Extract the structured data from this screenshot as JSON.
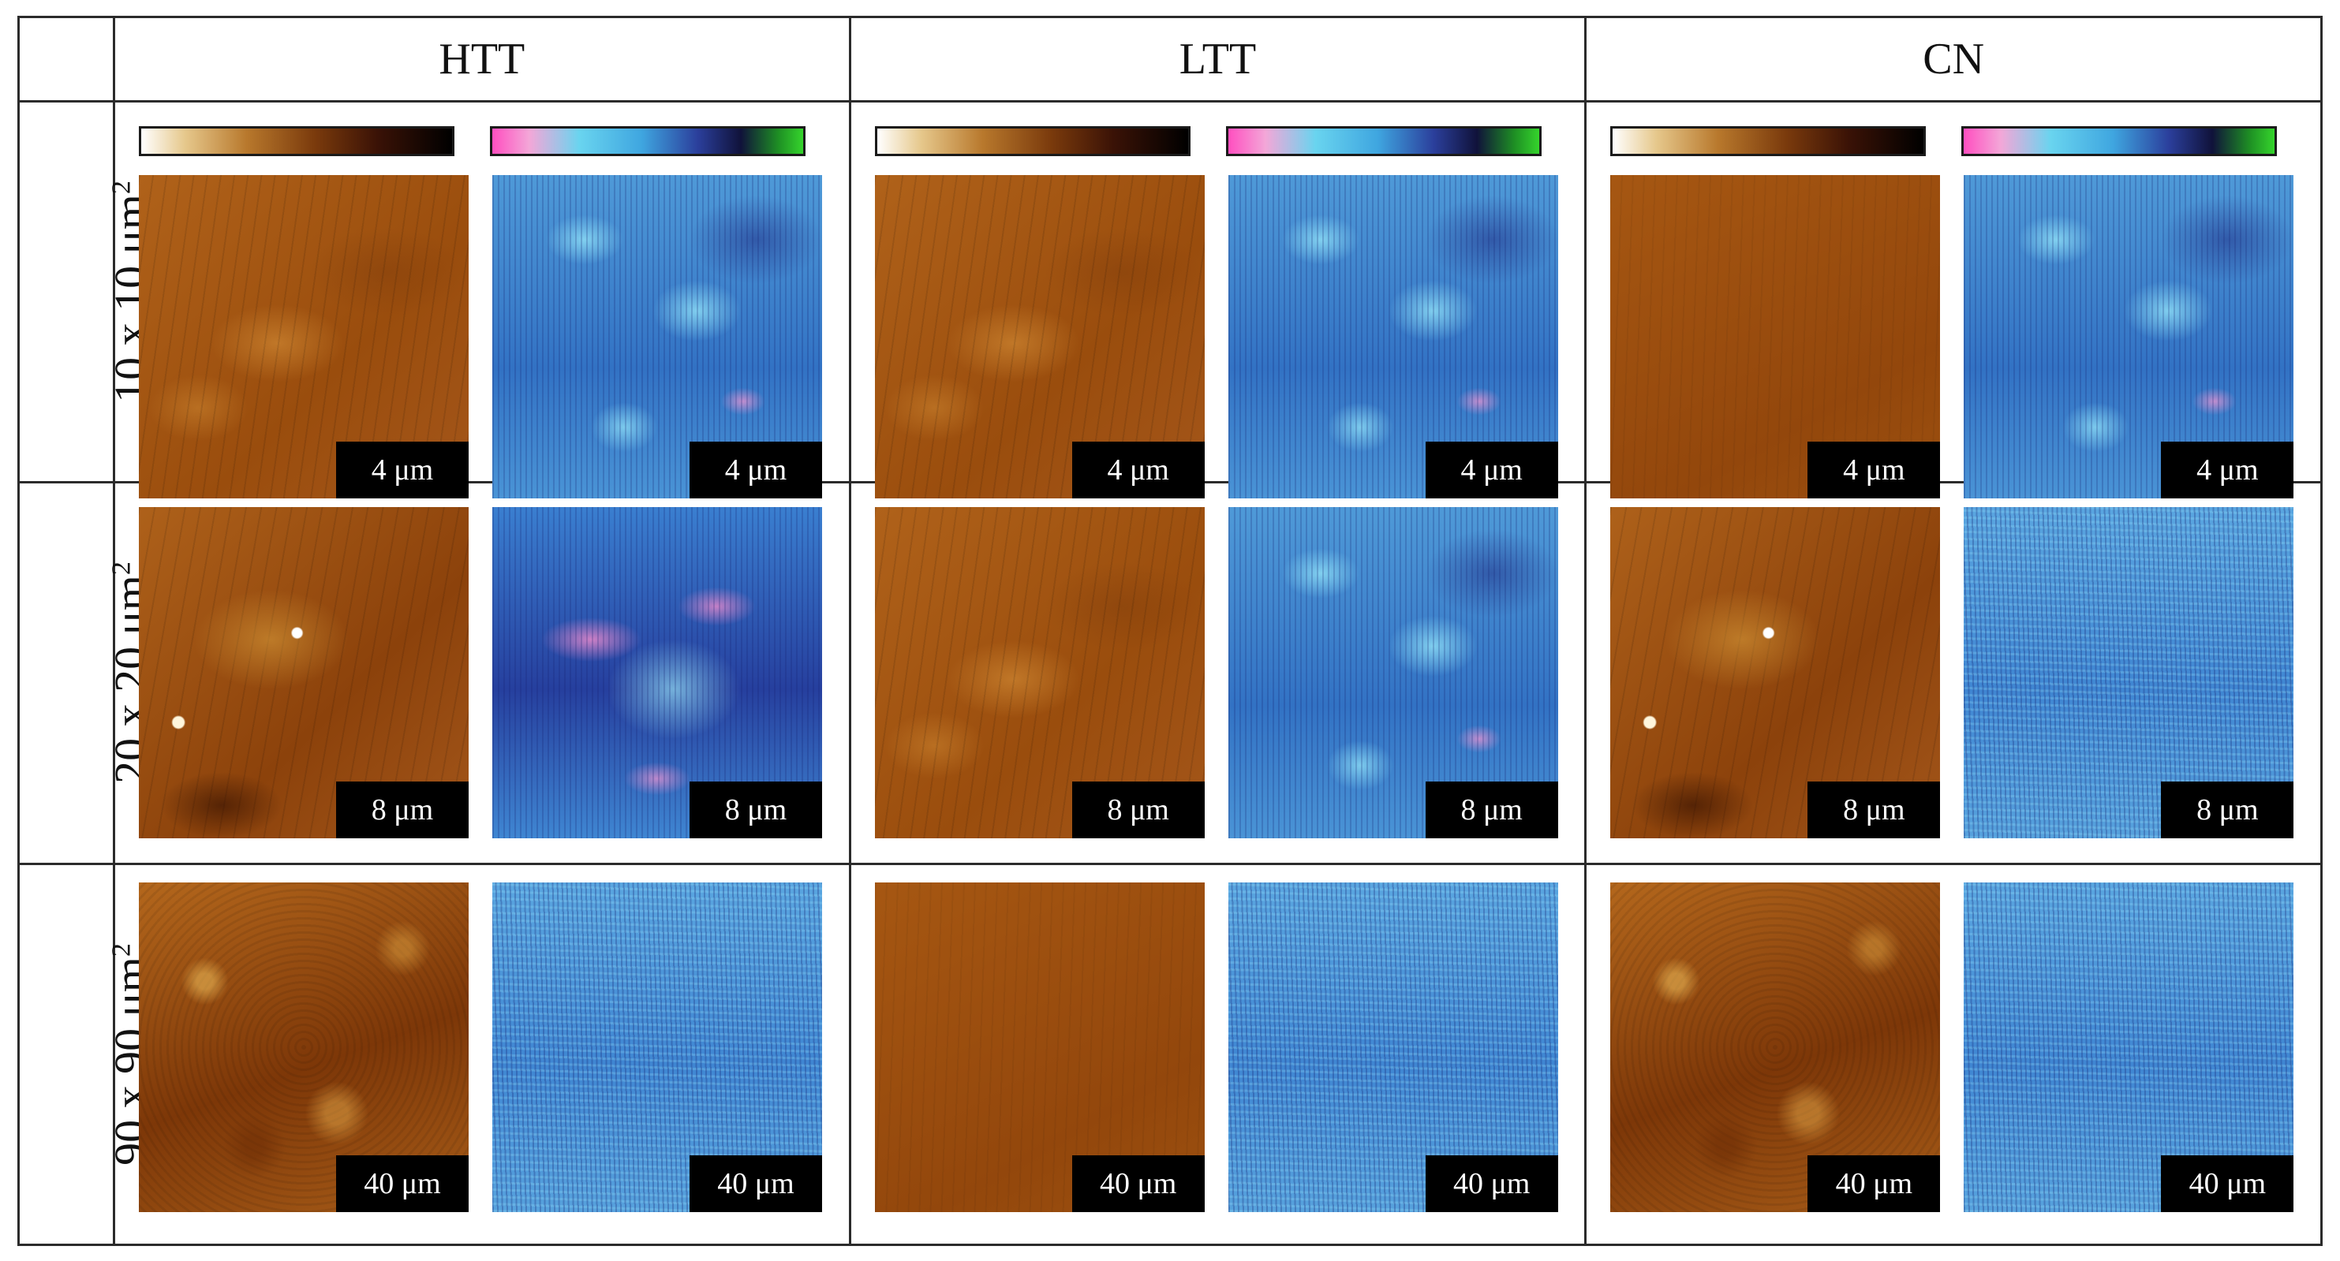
{
  "columns": [
    "HTT",
    "LTT",
    "CN"
  ],
  "rows": [
    {
      "area_label": "10 x 10 μm",
      "area_exp": "2",
      "scale_bar": "4 μm"
    },
    {
      "area_label": "20 x 20 μm",
      "area_exp": "2",
      "scale_bar": "8 μm"
    },
    {
      "area_label": "90 x 90 μm",
      "area_exp": "2",
      "scale_bar": "40 μm"
    }
  ],
  "colorbars": {
    "height": [
      "#ffffff",
      "#e6c88c",
      "#b8782c",
      "#7a3a0c",
      "#3a1206",
      "#000000"
    ],
    "phase": [
      "#ff4fc0",
      "#69d4ef",
      "#3fa6e0",
      "#2b3f9c",
      "#10123a",
      "#35d42c"
    ]
  }
}
